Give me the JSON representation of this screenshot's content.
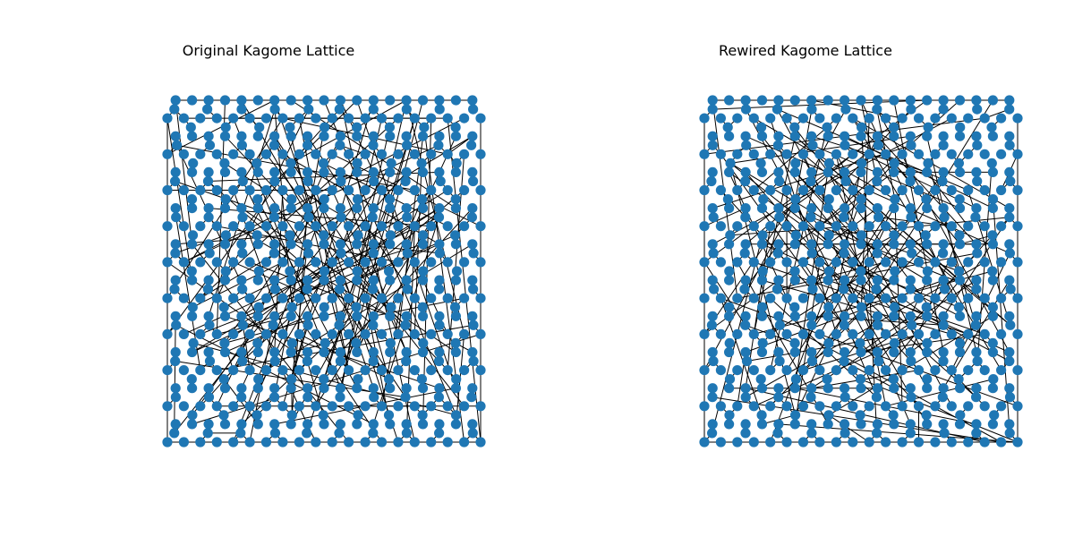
{
  "figure": {
    "left_title": "Original Kagome Lattice",
    "right_title": "Rewired Kagome Lattice",
    "node_color": "#1f77b4",
    "edge_color": "#000000",
    "background_color": "#ffffff"
  }
}
